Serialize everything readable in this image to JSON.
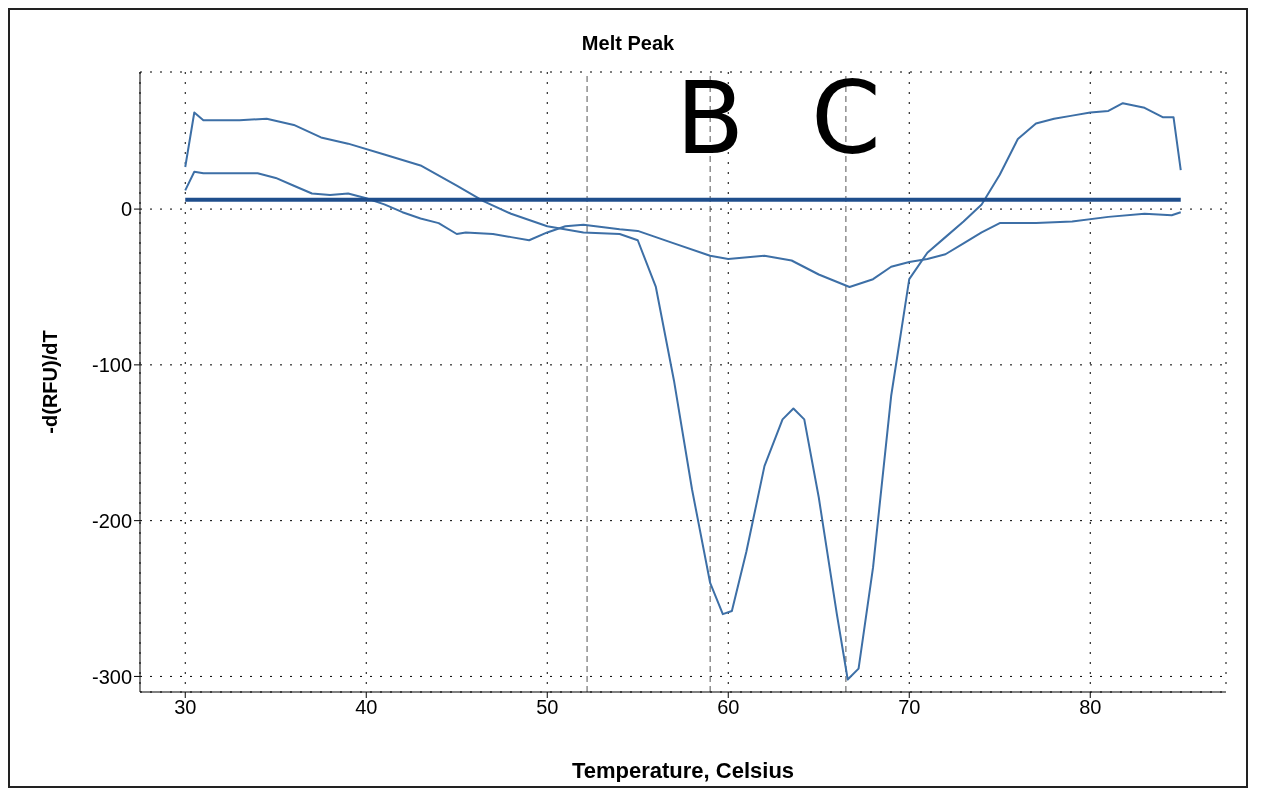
{
  "chart_data": {
    "type": "line",
    "title": "Melt Peak",
    "xlabel": "Temperature, Celsius",
    "ylabel": "-d(RFU)/dT",
    "xlim": [
      27.5,
      87.5
    ],
    "xticks": [
      30,
      40,
      50,
      60,
      70,
      80
    ],
    "ylim": [
      -310,
      88
    ],
    "yticks": [
      -300,
      -200,
      -100,
      0
    ],
    "grid": true,
    "marker": "none",
    "line_style": "solid",
    "ref_lines": [
      {
        "axis": "x",
        "value": 52.2,
        "line_style": "dashed",
        "color": "#555555"
      },
      {
        "axis": "x",
        "value": 59,
        "label": "B",
        "line_style": "dashed",
        "color": "#555555"
      },
      {
        "axis": "x",
        "value": 66.5,
        "label": "C",
        "line_style": "dashed",
        "color": "#555555"
      }
    ],
    "series": [
      {
        "color": "#3d6fa6",
        "x": [
          30,
          30.5,
          31,
          33,
          34.5,
          36,
          37.5,
          39,
          41,
          43,
          45,
          46.5,
          48,
          50,
          52,
          54,
          55,
          56,
          57,
          58,
          59,
          59.7,
          60.2,
          61,
          62,
          63,
          63.6,
          64.2,
          65,
          66,
          66.6,
          67.2,
          68,
          69,
          70,
          71,
          72,
          73,
          74,
          75,
          76,
          77,
          78,
          79,
          80,
          81,
          81.8,
          83,
          84,
          84.6,
          85
        ],
        "values": [
          27,
          62,
          57,
          57,
          58,
          54,
          46,
          42,
          35,
          28,
          15,
          5,
          -3,
          -11,
          -15,
          -16,
          -20,
          -50,
          -110,
          -180,
          -240,
          -260,
          -258,
          -220,
          -165,
          -135,
          -128,
          -135,
          -185,
          -260,
          -302,
          -295,
          -230,
          -120,
          -45,
          -28,
          -18,
          -8,
          3,
          22,
          45,
          55,
          58,
          60,
          62,
          63,
          68,
          65,
          59,
          59,
          25
        ]
      },
      {
        "color": "#3d6fa6",
        "x": [
          30,
          30.5,
          31,
          34,
          35,
          36,
          37,
          38,
          39,
          40,
          41,
          42,
          43,
          44,
          45,
          45.5,
          47,
          48,
          49,
          50,
          51,
          52,
          54,
          55,
          57,
          59,
          60,
          62,
          63.5,
          65,
          66.7,
          68,
          69,
          70,
          71,
          72,
          73,
          74,
          75,
          77,
          79,
          81,
          83,
          84.5,
          85
        ],
        "values": [
          12,
          24,
          23,
          23,
          20,
          15,
          10,
          9,
          10,
          7,
          3,
          -2,
          -6,
          -9,
          -16,
          -15,
          -16,
          -18,
          -20,
          -15,
          -11,
          -10,
          -13,
          -14,
          -22,
          -30,
          -32,
          -30,
          -33,
          -42,
          -50,
          -45,
          -37,
          -34,
          -32,
          -29,
          -22,
          -15,
          -9,
          -9,
          -8,
          -5,
          -3,
          -4,
          -2
        ]
      },
      {
        "color": "#1f4e8c",
        "x": [
          30,
          85
        ],
        "values": [
          6,
          6
        ]
      }
    ]
  }
}
